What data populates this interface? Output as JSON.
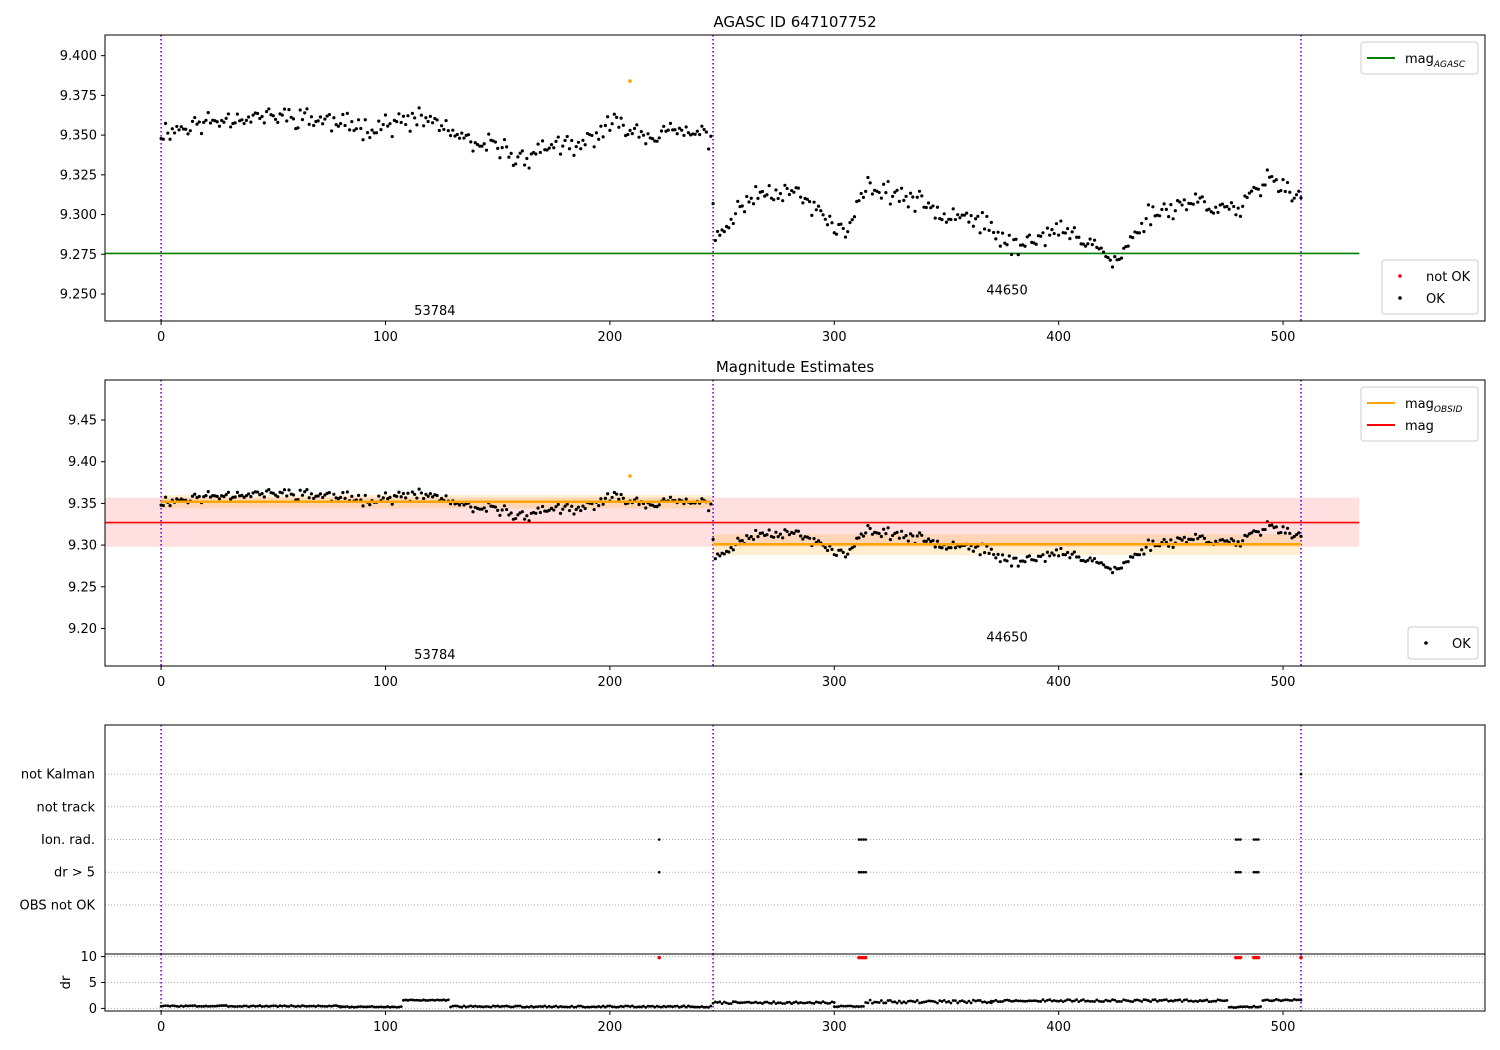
{
  "chart_data": [
    {
      "type": "scatter",
      "title": "AGASC ID 647107752",
      "xlim": [
        -25,
        590
      ],
      "ylim": [
        9.233,
        9.413
      ],
      "xticks": [
        0,
        100,
        200,
        300,
        400,
        500
      ],
      "yticks": [
        9.25,
        9.275,
        9.3,
        9.325,
        9.35,
        9.375,
        9.4
      ],
      "ytick_labels": [
        "9.250",
        "9.275",
        "9.300",
        "9.325",
        "9.350",
        "9.375",
        "9.400"
      ],
      "obs_boundaries": [
        0,
        246,
        508
      ],
      "obs_labels": [
        {
          "text": "53784",
          "x": 122,
          "y": 9.2395
        },
        {
          "text": "44650",
          "x": 377,
          "y": 9.2525
        }
      ],
      "mag_agasc": {
        "value": 9.2755,
        "x_range": [
          -25,
          534
        ]
      },
      "legends": [
        {
          "placement": "top-right",
          "entries": [
            {
              "label": "mag",
              "sub": "AGASC",
              "color": "#008000",
              "kind": "line"
            }
          ]
        },
        {
          "placement": "bottom-right",
          "entries": [
            {
              "label": "not OK",
              "color": "#ff0000",
              "kind": "point"
            },
            {
              "label": "OK",
              "color": "#000000",
              "kind": "point"
            }
          ]
        }
      ],
      "series": [
        {
          "name": "OK",
          "color": "#000000",
          "kind": "random_walk",
          "segments": [
            {
              "x_range": [
                0,
                245
              ],
              "anchors": [
                [
                  0,
                  9.352
                ],
                [
                  30,
                  9.361
                ],
                [
                  60,
                  9.362
                ],
                [
                  90,
                  9.355
                ],
                [
                  120,
                  9.36
                ],
                [
                  140,
                  9.342
                ],
                [
                  150,
                  9.344
                ],
                [
                  160,
                  9.334
                ],
                [
                  175,
                  9.345
                ],
                [
                  185,
                  9.34
                ],
                [
                  195,
                  9.352
                ],
                [
                  205,
                  9.358
                ],
                [
                  215,
                  9.351
                ],
                [
                  230,
                  9.352
                ],
                [
                  245,
                  9.349
                ]
              ],
              "spread": 0.0085,
              "seed": 11
            },
            {
              "x_range": [
                246,
                508
              ],
              "anchors": [
                [
                  247,
                  9.283
                ],
                [
                  255,
                  9.3
                ],
                [
                  265,
                  9.313
                ],
                [
                  280,
                  9.316
                ],
                [
                  295,
                  9.3
                ],
                [
                  305,
                  9.287
                ],
                [
                  315,
                  9.318
                ],
                [
                  330,
                  9.312
                ],
                [
                  345,
                  9.303
                ],
                [
                  360,
                  9.3
                ],
                [
                  370,
                  9.29
                ],
                [
                  380,
                  9.28
                ],
                [
                  400,
                  9.29
                ],
                [
                  415,
                  9.284
                ],
                [
                  425,
                  9.268
                ],
                [
                  440,
                  9.3
                ],
                [
                  460,
                  9.309
                ],
                [
                  480,
                  9.302
                ],
                [
                  495,
                  9.325
                ],
                [
                  508,
                  9.31
                ]
              ],
              "spread": 0.008,
              "seed": 23
            }
          ]
        },
        {
          "name": "orange",
          "color": "#ffa500",
          "kind": "points",
          "x": [
            209
          ],
          "y": [
            9.384
          ]
        }
      ]
    },
    {
      "type": "scatter",
      "title": "Magnitude Estimates",
      "xlim": [
        -25,
        590
      ],
      "ylim": [
        9.155,
        9.498
      ],
      "xticks": [
        0,
        100,
        200,
        300,
        400,
        500
      ],
      "yticks": [
        9.2,
        9.25,
        9.3,
        9.35,
        9.4,
        9.45
      ],
      "ytick_labels": [
        "9.20",
        "9.25",
        "9.30",
        "9.35",
        "9.40",
        "9.45"
      ],
      "obs_boundaries": [
        0,
        246,
        508
      ],
      "obs_labels": [
        {
          "text": "53784",
          "x": 122,
          "y": 9.169
        },
        {
          "text": "44650",
          "x": 377,
          "y": 9.19
        }
      ],
      "mag": {
        "value": 9.327,
        "band": [
          9.298,
          9.357
        ],
        "x_range": [
          -25,
          534
        ]
      },
      "mag_obsid": [
        {
          "x_range": [
            0,
            245
          ],
          "value": 9.352,
          "band": [
            9.344,
            9.36
          ]
        },
        {
          "x_range": [
            246,
            508
          ],
          "value": 9.301,
          "band": [
            9.288,
            9.313
          ]
        }
      ],
      "legends": [
        {
          "placement": "top-right",
          "entries": [
            {
              "label": "mag",
              "sub": "OBSID",
              "color": "#ffa500",
              "kind": "line"
            },
            {
              "label": "mag",
              "sub": "",
              "color": "#ff0000",
              "kind": "line"
            }
          ]
        },
        {
          "placement": "bottom-right",
          "entries": [
            {
              "label": "OK",
              "color": "#000000",
              "kind": "point"
            }
          ]
        }
      ],
      "series": [
        {
          "name": "OK",
          "color": "#000000",
          "kind": "random_walk",
          "segments": [
            {
              "x_range": [
                0,
                245
              ],
              "anchors": [
                [
                  0,
                  9.352
                ],
                [
                  30,
                  9.361
                ],
                [
                  60,
                  9.362
                ],
                [
                  90,
                  9.355
                ],
                [
                  120,
                  9.36
                ],
                [
                  140,
                  9.342
                ],
                [
                  150,
                  9.344
                ],
                [
                  160,
                  9.334
                ],
                [
                  175,
                  9.345
                ],
                [
                  185,
                  9.34
                ],
                [
                  195,
                  9.352
                ],
                [
                  205,
                  9.358
                ],
                [
                  215,
                  9.351
                ],
                [
                  230,
                  9.352
                ],
                [
                  245,
                  9.349
                ]
              ],
              "spread": 0.0085,
              "seed": 11
            },
            {
              "x_range": [
                246,
                508
              ],
              "anchors": [
                [
                  247,
                  9.283
                ],
                [
                  255,
                  9.3
                ],
                [
                  265,
                  9.313
                ],
                [
                  280,
                  9.316
                ],
                [
                  295,
                  9.3
                ],
                [
                  305,
                  9.287
                ],
                [
                  315,
                  9.318
                ],
                [
                  330,
                  9.312
                ],
                [
                  345,
                  9.303
                ],
                [
                  360,
                  9.3
                ],
                [
                  370,
                  9.29
                ],
                [
                  380,
                  9.28
                ],
                [
                  400,
                  9.29
                ],
                [
                  415,
                  9.284
                ],
                [
                  425,
                  9.268
                ],
                [
                  440,
                  9.3
                ],
                [
                  460,
                  9.309
                ],
                [
                  480,
                  9.302
                ],
                [
                  495,
                  9.325
                ],
                [
                  508,
                  9.31
                ]
              ],
              "spread": 0.008,
              "seed": 23
            }
          ]
        },
        {
          "name": "orange",
          "color": "#ffa500",
          "kind": "points",
          "x": [
            209
          ],
          "y": [
            9.383
          ]
        }
      ]
    },
    {
      "type": "scatter",
      "title": "",
      "xlim": [
        -25,
        590
      ],
      "ylim": [
        -0.5,
        6.5
      ],
      "categories": [
        "OBS not OK",
        "dr > 5",
        "Ion. rad.",
        "not track",
        "not Kalman"
      ],
      "category_y": [
        1,
        2,
        3,
        4,
        5
      ],
      "obs_boundaries": [
        0,
        246,
        508
      ],
      "flags": [
        {
          "category": "Ion. rad.",
          "x": [
            222,
            311,
            312,
            313,
            314,
            479,
            480,
            481,
            487,
            488,
            489
          ]
        },
        {
          "category": "dr > 5",
          "x": [
            222,
            311,
            312,
            313,
            314,
            479,
            480,
            481,
            487,
            488,
            489
          ]
        },
        {
          "category": "not Kalman",
          "x": [
            508
          ]
        }
      ]
    },
    {
      "type": "scatter",
      "title": "",
      "ylabel": "dr",
      "xlim": [
        -25,
        590
      ],
      "ylim": [
        -0.5,
        10.5
      ],
      "xticks": [
        0,
        100,
        200,
        300,
        400,
        500
      ],
      "yticks": [
        0,
        5,
        10
      ],
      "ytick_labels": [
        "0",
        "5",
        "10"
      ],
      "obs_boundaries": [
        0,
        246,
        508
      ],
      "series": [
        {
          "name": "dr",
          "color": "#000000",
          "kind": "dr_segments",
          "segments": [
            {
              "x_range": [
                0,
                80
              ],
              "base": 0.45,
              "amp": 0.25,
              "seed": 3
            },
            {
              "x_range": [
                80,
                107
              ],
              "base": 0.3,
              "amp": 0.2,
              "seed": 4
            },
            {
              "x_range": [
                108,
                128
              ],
              "base": 1.6,
              "amp": 0.15,
              "seed": 5
            },
            {
              "x_range": [
                129,
                245
              ],
              "base": 0.35,
              "amp": 0.3,
              "seed": 6
            },
            {
              "x_range": [
                246,
                300
              ],
              "base": 1.1,
              "amp": 0.4,
              "seed": 7
            },
            {
              "x_range": [
                300,
                313
              ],
              "base": 0.4,
              "amp": 0.2,
              "seed": 8
            },
            {
              "x_range": [
                314,
                370
              ],
              "base": 1.3,
              "amp": 0.6,
              "seed": 9
            },
            {
              "x_range": [
                370,
                475
              ],
              "base": 1.5,
              "amp": 0.4,
              "seed": 10
            },
            {
              "x_range": [
                476,
                490
              ],
              "base": 0.3,
              "amp": 0.3,
              "seed": 12
            },
            {
              "x_range": [
                491,
                508
              ],
              "base": 1.6,
              "amp": 0.3,
              "seed": 13
            }
          ]
        },
        {
          "name": "dr-flagged",
          "color": "#ff0000",
          "kind": "points",
          "x": [
            222,
            311,
            312,
            313,
            314,
            479,
            480,
            481,
            487,
            488,
            489,
            508
          ],
          "y": [
            9.8,
            9.8,
            9.8,
            9.8,
            9.8,
            9.8,
            9.8,
            9.8,
            9.8,
            9.8,
            9.8,
            9.8
          ]
        }
      ]
    }
  ]
}
